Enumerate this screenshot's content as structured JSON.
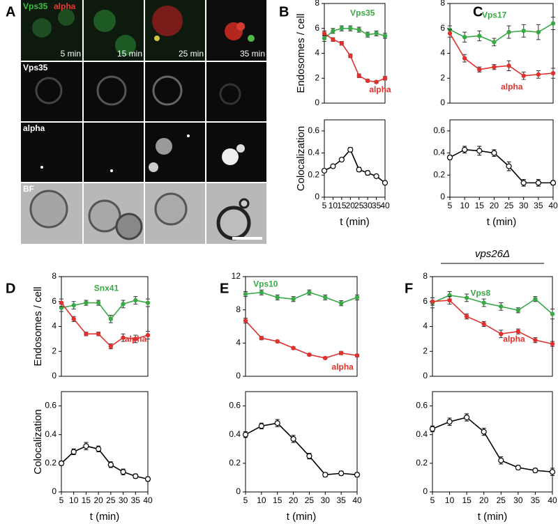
{
  "panel_labels": [
    "A",
    "B",
    "C",
    "D",
    "E",
    "F"
  ],
  "panel_a": {
    "channels": [
      "Vps35",
      "alpha"
    ],
    "times": [
      "5 min",
      "15 min",
      "25 min",
      "35 min"
    ],
    "row_labels": [
      "Vps35",
      "alpha",
      "BF"
    ]
  },
  "genotype_label": "vps26Δ",
  "chart_data": [
    {
      "type": "line",
      "x": [
        5,
        10,
        15,
        20,
        25,
        30,
        35,
        40
      ],
      "xlim": [
        5,
        40
      ],
      "ylim": [
        0,
        8
      ],
      "yticks": [
        0,
        2,
        4,
        6,
        8
      ],
      "y_label": "Endosomes / cell",
      "series": [
        {
          "name": "Vps35",
          "color": "#3aa845",
          "values": [
            5.2,
            5.8,
            6.0,
            6.0,
            5.9,
            5.5,
            5.6,
            5.4
          ],
          "errors": [
            0.25,
            0.2,
            0.2,
            0.2,
            0.2,
            0.2,
            0.2,
            0.2
          ]
        },
        {
          "name": "alpha",
          "color": "#e0312e",
          "values": [
            5.6,
            5.1,
            4.8,
            3.8,
            2.2,
            1.8,
            1.7,
            2.0
          ],
          "errors": [
            0.2,
            0.15,
            0.15,
            0.15,
            0.15,
            0.1,
            0.1,
            0.15
          ]
        }
      ]
    },
    {
      "type": "line",
      "x": [
        5,
        10,
        15,
        20,
        25,
        30,
        35,
        40
      ],
      "xlim": [
        5,
        40
      ],
      "xticks": [
        5,
        10,
        15,
        20,
        25,
        30,
        35,
        40
      ],
      "ylim": [
        0,
        0.7
      ],
      "yticks": [
        0,
        0.2,
        0.4,
        0.6
      ],
      "y_label": "Colocalization",
      "x_label": "t (min)",
      "series": [
        {
          "color": "#000000",
          "values": [
            0.24,
            0.28,
            0.34,
            0.43,
            0.25,
            0.22,
            0.19,
            0.13
          ],
          "errors": [
            0.015,
            0.015,
            0.015,
            0.02,
            0.02,
            0.02,
            0.015,
            0.015
          ]
        }
      ]
    },
    {
      "type": "line",
      "x": [
        5,
        10,
        15,
        20,
        25,
        30,
        35,
        40
      ],
      "xlim": [
        5,
        40
      ],
      "ylim": [
        0,
        8
      ],
      "yticks": [
        0,
        2,
        4,
        6,
        8
      ],
      "series": [
        {
          "name": "Vps17",
          "color": "#3aa845",
          "values": [
            5.9,
            5.3,
            5.4,
            4.9,
            5.7,
            5.8,
            5.7,
            6.4
          ],
          "errors": [
            0.3,
            0.4,
            0.4,
            0.3,
            0.5,
            0.5,
            0.6,
            0.5
          ]
        },
        {
          "name": "alpha",
          "color": "#e0312e",
          "values": [
            5.6,
            3.6,
            2.7,
            2.9,
            3.0,
            2.2,
            2.3,
            2.4
          ],
          "errors": [
            0.3,
            0.3,
            0.2,
            0.2,
            0.4,
            0.3,
            0.3,
            0.4
          ]
        }
      ]
    },
    {
      "type": "line",
      "x": [
        5,
        10,
        15,
        20,
        25,
        30,
        35,
        40
      ],
      "xlim": [
        5,
        40
      ],
      "xticks": [
        5,
        10,
        15,
        20,
        25,
        30,
        35,
        40
      ],
      "ylim": [
        0,
        0.7
      ],
      "yticks": [
        0,
        0.2,
        0.4,
        0.6
      ],
      "x_label": "t (min)",
      "series": [
        {
          "color": "#000000",
          "values": [
            0.36,
            0.43,
            0.42,
            0.4,
            0.28,
            0.13,
            0.13,
            0.13
          ],
          "errors": [
            0.02,
            0.03,
            0.04,
            0.03,
            0.04,
            0.03,
            0.03,
            0.02
          ]
        }
      ]
    },
    {
      "type": "line",
      "x": [
        5,
        10,
        15,
        20,
        25,
        30,
        35,
        40
      ],
      "xlim": [
        5,
        40
      ],
      "ylim": [
        0,
        8
      ],
      "yticks": [
        0,
        2,
        4,
        6,
        8
      ],
      "y_label": "Endosomes / cell",
      "series": [
        {
          "name": "Snx41",
          "color": "#3aa845",
          "values": [
            5.5,
            5.7,
            5.9,
            5.9,
            4.6,
            5.8,
            6.1,
            5.9
          ],
          "errors": [
            0.3,
            0.3,
            0.2,
            0.2,
            0.3,
            0.3,
            0.3,
            0.3
          ]
        },
        {
          "name": "alpha",
          "color": "#e0312e",
          "values": [
            5.9,
            4.6,
            3.4,
            3.4,
            2.4,
            3.1,
            3.0,
            3.3
          ],
          "errors": [
            0.3,
            0.2,
            0.15,
            0.15,
            0.2,
            0.3,
            0.3,
            0.3
          ]
        }
      ]
    },
    {
      "type": "line",
      "x": [
        5,
        10,
        15,
        20,
        25,
        30,
        35,
        40
      ],
      "xlim": [
        5,
        40
      ],
      "xticks": [
        5,
        10,
        15,
        20,
        25,
        30,
        35,
        40
      ],
      "ylim": [
        0,
        0.7
      ],
      "yticks": [
        0,
        0.2,
        0.4,
        0.6
      ],
      "y_label": "Colocalization",
      "x_label": "t (min)",
      "series": [
        {
          "color": "#000000",
          "values": [
            0.2,
            0.28,
            0.32,
            0.3,
            0.19,
            0.14,
            0.11,
            0.09
          ],
          "errors": [
            0.015,
            0.02,
            0.025,
            0.02,
            0.02,
            0.02,
            0.015,
            0.015
          ]
        }
      ]
    },
    {
      "type": "line",
      "x": [
        5,
        10,
        15,
        20,
        25,
        30,
        35,
        40
      ],
      "xlim": [
        5,
        40
      ],
      "ylim": [
        0,
        12
      ],
      "yticks": [
        0,
        4,
        8,
        12
      ],
      "series": [
        {
          "name": "Vps10",
          "color": "#3aa845",
          "values": [
            9.9,
            10.1,
            9.5,
            9.3,
            10.1,
            9.5,
            8.8,
            9.5
          ],
          "errors": [
            0.3,
            0.3,
            0.3,
            0.3,
            0.3,
            0.3,
            0.3,
            0.3
          ]
        },
        {
          "name": "alpha",
          "color": "#e0312e",
          "values": [
            6.7,
            4.6,
            4.2,
            3.4,
            2.6,
            2.2,
            2.8,
            2.5
          ],
          "errors": [
            0.3,
            0.2,
            0.15,
            0.15,
            0.15,
            0.15,
            0.2,
            0.15
          ]
        }
      ]
    },
    {
      "type": "line",
      "x": [
        5,
        10,
        15,
        20,
        25,
        30,
        35,
        40
      ],
      "xlim": [
        5,
        40
      ],
      "xticks": [
        5,
        10,
        15,
        20,
        25,
        30,
        35,
        40
      ],
      "ylim": [
        0,
        0.7
      ],
      "yticks": [
        0,
        0.2,
        0.4,
        0.6
      ],
      "x_label": "t (min)",
      "series": [
        {
          "color": "#000000",
          "values": [
            0.4,
            0.46,
            0.48,
            0.37,
            0.25,
            0.12,
            0.13,
            0.12
          ],
          "errors": [
            0.02,
            0.02,
            0.025,
            0.025,
            0.02,
            0.015,
            0.015,
            0.015
          ]
        }
      ]
    },
    {
      "type": "line",
      "x": [
        5,
        10,
        15,
        20,
        25,
        30,
        35,
        40
      ],
      "xlim": [
        5,
        40
      ],
      "ylim": [
        0,
        8
      ],
      "yticks": [
        0,
        2,
        4,
        6,
        8
      ],
      "series": [
        {
          "name": "Vps8",
          "color": "#3aa845",
          "values": [
            5.9,
            6.5,
            6.3,
            5.9,
            5.6,
            5.3,
            6.2,
            5.0
          ],
          "errors": [
            0.4,
            0.3,
            0.3,
            0.3,
            0.3,
            0.2,
            0.2,
            0.4
          ]
        },
        {
          "name": "alpha",
          "color": "#e0312e",
          "values": [
            6.0,
            6.1,
            4.8,
            4.2,
            3.4,
            3.6,
            2.9,
            2.6
          ],
          "errors": [
            0.3,
            0.3,
            0.2,
            0.2,
            0.3,
            0.2,
            0.2,
            0.2
          ]
        }
      ]
    },
    {
      "type": "line",
      "x": [
        5,
        10,
        15,
        20,
        25,
        30,
        35,
        40
      ],
      "xlim": [
        5,
        40
      ],
      "xticks": [
        5,
        10,
        15,
        20,
        25,
        30,
        35,
        40
      ],
      "ylim": [
        0,
        0.7
      ],
      "yticks": [
        0,
        0.2,
        0.4,
        0.6
      ],
      "x_label": "t (min)",
      "series": [
        {
          "color": "#000000",
          "values": [
            0.44,
            0.49,
            0.52,
            0.42,
            0.22,
            0.17,
            0.15,
            0.14
          ],
          "errors": [
            0.02,
            0.025,
            0.025,
            0.025,
            0.025,
            0.015,
            0.015,
            0.025
          ]
        }
      ]
    }
  ]
}
